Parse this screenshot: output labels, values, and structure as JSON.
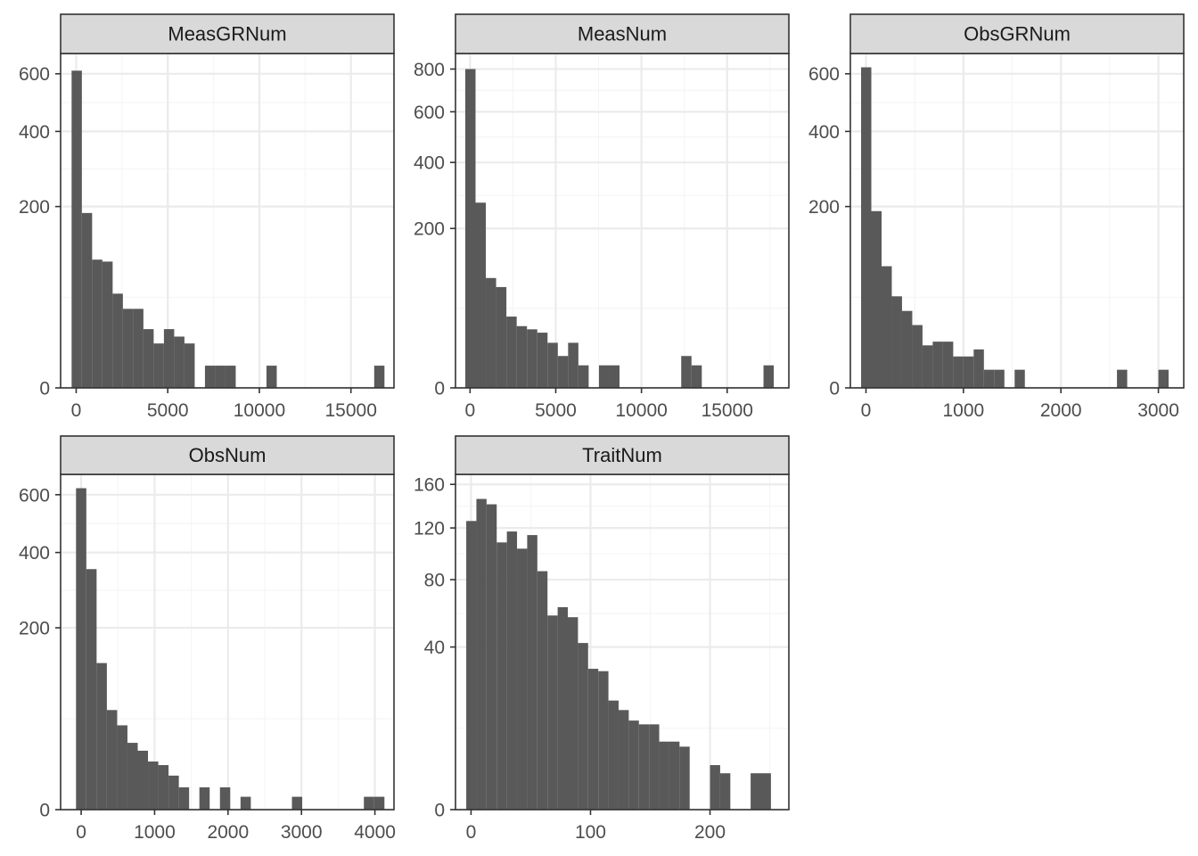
{
  "chart_data": [
    {
      "type": "bar",
      "title": "MeasGRNum",
      "y_scale": "sqrt",
      "xlim": [
        -850,
        17350
      ],
      "ylim": [
        0,
        680
      ],
      "x_ticks": [
        0,
        5000,
        10000,
        15000
      ],
      "y_ticks": [
        0,
        200,
        400,
        600
      ],
      "bins": [
        {
          "x0": -250,
          "x1": 310,
          "count": 612
        },
        {
          "x0": 310,
          "x1": 870,
          "count": 186
        },
        {
          "x0": 870,
          "x1": 1430,
          "count": 100
        },
        {
          "x0": 1430,
          "x1": 1990,
          "count": 97
        },
        {
          "x0": 1990,
          "x1": 2550,
          "count": 54
        },
        {
          "x0": 2550,
          "x1": 3110,
          "count": 38
        },
        {
          "x0": 3110,
          "x1": 3670,
          "count": 38
        },
        {
          "x0": 3670,
          "x1": 4230,
          "count": 21
        },
        {
          "x0": 4230,
          "x1": 4790,
          "count": 12
        },
        {
          "x0": 4790,
          "x1": 5350,
          "count": 21
        },
        {
          "x0": 5350,
          "x1": 5910,
          "count": 16
        },
        {
          "x0": 5910,
          "x1": 6470,
          "count": 12
        },
        {
          "x0": 7030,
          "x1": 7590,
          "count": 3
        },
        {
          "x0": 7590,
          "x1": 8150,
          "count": 3
        },
        {
          "x0": 8150,
          "x1": 8710,
          "count": 3
        },
        {
          "x0": 10390,
          "x1": 10950,
          "count": 3
        },
        {
          "x0": 16270,
          "x1": 16830,
          "count": 3
        }
      ]
    },
    {
      "type": "bar",
      "title": "MeasNum",
      "y_scale": "sqrt",
      "xlim": [
        -850,
        18600
      ],
      "ylim": [
        0,
        880
      ],
      "x_ticks": [
        0,
        5000,
        10000,
        15000
      ],
      "y_ticks": [
        0,
        200,
        400,
        600,
        800
      ],
      "bins": [
        {
          "x0": -280,
          "x1": 320,
          "count": 800
        },
        {
          "x0": 320,
          "x1": 920,
          "count": 270
        },
        {
          "x0": 920,
          "x1": 1520,
          "count": 95
        },
        {
          "x0": 1520,
          "x1": 2120,
          "count": 80
        },
        {
          "x0": 2120,
          "x1": 2720,
          "count": 40
        },
        {
          "x0": 2720,
          "x1": 3320,
          "count": 30
        },
        {
          "x0": 3320,
          "x1": 3920,
          "count": 27
        },
        {
          "x0": 3920,
          "x1": 4520,
          "count": 24
        },
        {
          "x0": 4520,
          "x1": 5120,
          "count": 16
        },
        {
          "x0": 5120,
          "x1": 5720,
          "count": 8
        },
        {
          "x0": 5720,
          "x1": 6320,
          "count": 16
        },
        {
          "x0": 6320,
          "x1": 6920,
          "count": 4
        },
        {
          "x0": 7520,
          "x1": 8120,
          "count": 4
        },
        {
          "x0": 8120,
          "x1": 8720,
          "count": 4
        },
        {
          "x0": 12320,
          "x1": 12920,
          "count": 8
        },
        {
          "x0": 12920,
          "x1": 13520,
          "count": 4
        },
        {
          "x0": 17120,
          "x1": 17720,
          "count": 4
        }
      ]
    },
    {
      "type": "bar",
      "title": "ObsGRNum",
      "y_scale": "sqrt",
      "xlim": [
        -160,
        3260
      ],
      "ylim": [
        0,
        680
      ],
      "x_ticks": [
        0,
        1000,
        2000,
        3000
      ],
      "y_ticks": [
        0,
        200,
        400,
        600
      ],
      "bins": [
        {
          "x0": -50,
          "x1": 55,
          "count": 625
        },
        {
          "x0": 55,
          "x1": 160,
          "count": 190
        },
        {
          "x0": 160,
          "x1": 265,
          "count": 90
        },
        {
          "x0": 265,
          "x1": 370,
          "count": 51
        },
        {
          "x0": 370,
          "x1": 475,
          "count": 36
        },
        {
          "x0": 475,
          "x1": 580,
          "count": 24
        },
        {
          "x0": 580,
          "x1": 685,
          "count": 11
        },
        {
          "x0": 685,
          "x1": 790,
          "count": 13
        },
        {
          "x0": 790,
          "x1": 895,
          "count": 13
        },
        {
          "x0": 895,
          "x1": 1000,
          "count": 6
        },
        {
          "x0": 1000,
          "x1": 1105,
          "count": 6
        },
        {
          "x0": 1105,
          "x1": 1210,
          "count": 9
        },
        {
          "x0": 1210,
          "x1": 1315,
          "count": 2
        },
        {
          "x0": 1315,
          "x1": 1420,
          "count": 2
        },
        {
          "x0": 1525,
          "x1": 1630,
          "count": 2
        },
        {
          "x0": 2575,
          "x1": 2680,
          "count": 2
        },
        {
          "x0": 3000,
          "x1": 3105,
          "count": 2
        }
      ]
    },
    {
      "type": "bar",
      "title": "ObsNum",
      "y_scale": "sqrt",
      "xlim": [
        -280,
        4260
      ],
      "ylim": [
        0,
        680
      ],
      "x_ticks": [
        0,
        1000,
        2000,
        3000,
        4000
      ],
      "y_ticks": [
        0,
        200,
        400,
        600
      ],
      "bins": [
        {
          "x0": -70,
          "x1": 70,
          "count": 625
        },
        {
          "x0": 70,
          "x1": 210,
          "count": 350
        },
        {
          "x0": 210,
          "x1": 350,
          "count": 130
        },
        {
          "x0": 350,
          "x1": 490,
          "count": 60
        },
        {
          "x0": 490,
          "x1": 630,
          "count": 43
        },
        {
          "x0": 630,
          "x1": 770,
          "count": 27
        },
        {
          "x0": 770,
          "x1": 910,
          "count": 21
        },
        {
          "x0": 910,
          "x1": 1050,
          "count": 14
        },
        {
          "x0": 1050,
          "x1": 1190,
          "count": 12
        },
        {
          "x0": 1190,
          "x1": 1330,
          "count": 7
        },
        {
          "x0": 1330,
          "x1": 1470,
          "count": 3
        },
        {
          "x0": 1610,
          "x1": 1750,
          "count": 3
        },
        {
          "x0": 1890,
          "x1": 2030,
          "count": 3
        },
        {
          "x0": 2170,
          "x1": 2310,
          "count": 1
        },
        {
          "x0": 2870,
          "x1": 3010,
          "count": 1
        },
        {
          "x0": 3850,
          "x1": 3990,
          "count": 1
        },
        {
          "x0": 3990,
          "x1": 4130,
          "count": 1
        }
      ]
    },
    {
      "type": "bar",
      "title": "TraitNum",
      "y_scale": "sqrt",
      "xlim": [
        -13,
        266
      ],
      "ylim": [
        0,
        170
      ],
      "x_ticks": [
        0,
        100,
        200
      ],
      "y_ticks": [
        0,
        40,
        80,
        120,
        160
      ],
      "bins": [
        {
          "x0": -4,
          "x1": 4.5,
          "count": 126
        },
        {
          "x0": 4.5,
          "x1": 13,
          "count": 146
        },
        {
          "x0": 13,
          "x1": 21.5,
          "count": 141
        },
        {
          "x0": 21.5,
          "x1": 30,
          "count": 108
        },
        {
          "x0": 30,
          "x1": 38.5,
          "count": 117
        },
        {
          "x0": 38.5,
          "x1": 47,
          "count": 103
        },
        {
          "x0": 47,
          "x1": 55.5,
          "count": 114
        },
        {
          "x0": 55.5,
          "x1": 64,
          "count": 86
        },
        {
          "x0": 64,
          "x1": 72.5,
          "count": 57
        },
        {
          "x0": 72.5,
          "x1": 81,
          "count": 62
        },
        {
          "x0": 81,
          "x1": 89.5,
          "count": 56
        },
        {
          "x0": 89.5,
          "x1": 98,
          "count": 42
        },
        {
          "x0": 98,
          "x1": 106.5,
          "count": 30
        },
        {
          "x0": 106.5,
          "x1": 115,
          "count": 29
        },
        {
          "x0": 115,
          "x1": 123.5,
          "count": 18
        },
        {
          "x0": 123.5,
          "x1": 132,
          "count": 15
        },
        {
          "x0": 132,
          "x1": 140.5,
          "count": 12
        },
        {
          "x0": 140.5,
          "x1": 149,
          "count": 11
        },
        {
          "x0": 149,
          "x1": 157.5,
          "count": 11
        },
        {
          "x0": 157.5,
          "x1": 166,
          "count": 7
        },
        {
          "x0": 166,
          "x1": 174.5,
          "count": 7
        },
        {
          "x0": 174.5,
          "x1": 183,
          "count": 6
        },
        {
          "x0": 200,
          "x1": 208.5,
          "count": 3
        },
        {
          "x0": 208.5,
          "x1": 217,
          "count": 2
        },
        {
          "x0": 234,
          "x1": 242.5,
          "count": 2
        },
        {
          "x0": 242.5,
          "x1": 251,
          "count": 2
        }
      ]
    }
  ],
  "colors": {
    "bar_fill": "#595959",
    "strip_fill": "#d9d9d9",
    "grid_major": "#ebebeb",
    "grid_minor": "#f5f5f5",
    "panel_border": "#333333",
    "tick_label": "#4d4d4d",
    "strip_text": "#1a1a1a"
  }
}
